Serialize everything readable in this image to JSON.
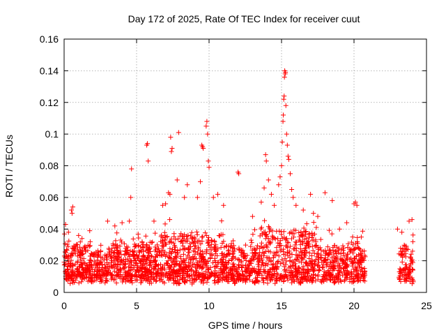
{
  "chart_data": {
    "type": "scatter",
    "title": "Day 172 of 2025, Rate Of TEC Index for receiver cuut",
    "xlabel": "GPS time / hours",
    "ylabel": "ROTI / TECUs",
    "xlim": [
      0,
      25
    ],
    "ylim": [
      0,
      0.16
    ],
    "xticks": [
      0,
      5,
      10,
      15,
      20,
      25
    ],
    "yticks": [
      0,
      0.02,
      0.04,
      0.06,
      0.08,
      0.1,
      0.12,
      0.14,
      0.16
    ],
    "xtick_labels": [
      "0",
      "5",
      "10",
      "15",
      "20",
      "25"
    ],
    "ytick_labels": [
      "0",
      "0.02",
      "0.04",
      "0.06",
      "0.08",
      "0.1",
      "0.12",
      "0.14",
      "0.16"
    ],
    "grid": true,
    "marker": "+",
    "color": "#ff0000",
    "data_gaps_hours": [
      [
        20.8,
        22.8
      ]
    ],
    "series": [
      {
        "points": [
          [
            0.1,
            0.043
          ],
          [
            0.3,
            0.038
          ],
          [
            0.5,
            0.052
          ],
          [
            0.55,
            0.05
          ],
          [
            0.6,
            0.054
          ],
          [
            1.0,
            0.036
          ],
          [
            1.8,
            0.032
          ],
          [
            3.0,
            0.045
          ],
          [
            3.5,
            0.042
          ],
          [
            4.0,
            0.044
          ],
          [
            4.5,
            0.045
          ],
          [
            4.6,
            0.06
          ],
          [
            4.65,
            0.078
          ],
          [
            5.7,
            0.093
          ],
          [
            5.75,
            0.094
          ],
          [
            5.8,
            0.083
          ],
          [
            6.2,
            0.045
          ],
          [
            6.8,
            0.055
          ],
          [
            7.0,
            0.056
          ],
          [
            7.2,
            0.063
          ],
          [
            7.3,
            0.062
          ],
          [
            7.35,
            0.098
          ],
          [
            7.4,
            0.089
          ],
          [
            7.45,
            0.091
          ],
          [
            7.8,
            0.071
          ],
          [
            7.9,
            0.101
          ],
          [
            8.3,
            0.06
          ],
          [
            8.5,
            0.068
          ],
          [
            9.2,
            0.06
          ],
          [
            9.4,
            0.07
          ],
          [
            9.5,
            0.093
          ],
          [
            9.55,
            0.092
          ],
          [
            9.6,
            0.091
          ],
          [
            9.8,
            0.105
          ],
          [
            9.85,
            0.108
          ],
          [
            9.9,
            0.1
          ],
          [
            9.95,
            0.083
          ],
          [
            10.0,
            0.079
          ],
          [
            10.3,
            0.06
          ],
          [
            10.6,
            0.062
          ],
          [
            11.0,
            0.055
          ],
          [
            12.0,
            0.076
          ],
          [
            12.05,
            0.075
          ],
          [
            13.0,
            0.048
          ],
          [
            13.6,
            0.057
          ],
          [
            13.8,
            0.066
          ],
          [
            13.9,
            0.087
          ],
          [
            13.95,
            0.083
          ],
          [
            14.1,
            0.071
          ],
          [
            14.3,
            0.062
          ],
          [
            14.5,
            0.055
          ],
          [
            14.8,
            0.068
          ],
          [
            14.9,
            0.073
          ],
          [
            15.0,
            0.08
          ],
          [
            15.05,
            0.095
          ],
          [
            15.1,
            0.108
          ],
          [
            15.12,
            0.112
          ],
          [
            15.15,
            0.122
          ],
          [
            15.18,
            0.124
          ],
          [
            15.2,
            0.136
          ],
          [
            15.22,
            0.14
          ],
          [
            15.25,
            0.138
          ],
          [
            15.27,
            0.139
          ],
          [
            15.3,
            0.118
          ],
          [
            15.35,
            0.1
          ],
          [
            15.4,
            0.093
          ],
          [
            15.45,
            0.086
          ],
          [
            15.5,
            0.084
          ],
          [
            15.6,
            0.075
          ],
          [
            15.7,
            0.065
          ],
          [
            15.8,
            0.06
          ],
          [
            16.0,
            0.055
          ],
          [
            16.5,
            0.052
          ],
          [
            17.0,
            0.062
          ],
          [
            17.2,
            0.05
          ],
          [
            17.5,
            0.048
          ],
          [
            18.0,
            0.063
          ],
          [
            18.5,
            0.058
          ],
          [
            19.0,
            0.04
          ],
          [
            19.5,
            0.044
          ],
          [
            20.0,
            0.056
          ],
          [
            20.1,
            0.057
          ],
          [
            20.2,
            0.055
          ],
          [
            20.5,
            0.035
          ],
          [
            23.0,
            0.04
          ],
          [
            23.3,
            0.038
          ],
          [
            23.8,
            0.045
          ],
          [
            24.0,
            0.046
          ]
        ]
      }
    ]
  }
}
